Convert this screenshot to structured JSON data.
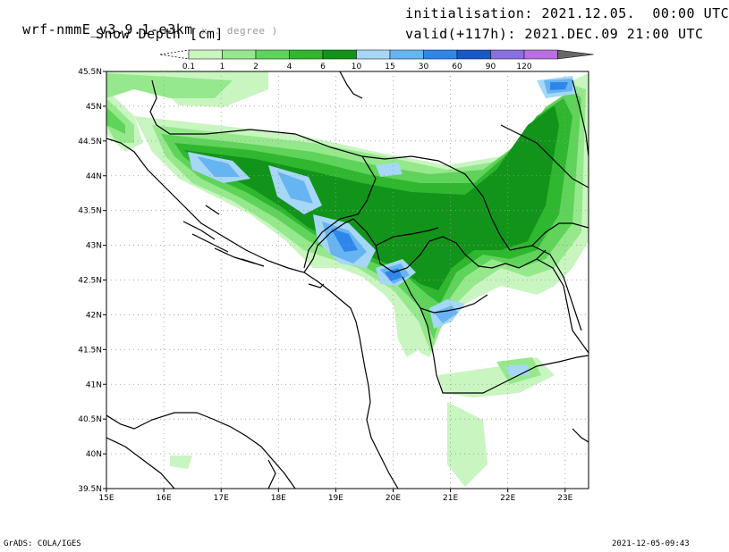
{
  "header": {
    "model": "wrf-nmmE_v3.9.1-e3km",
    "units_hint": "x . degree )",
    "field_title": "Snow Depth [cm]",
    "initialisation": "initialisation: 2021.12.05.  00:00 UTC",
    "valid": "valid(+117h): 2021.DEC.09 21:00 UTC"
  },
  "legend": {
    "levels": [
      "0.1",
      "1",
      "2",
      "4",
      "6",
      "10",
      "15",
      "30",
      "60",
      "90",
      "120"
    ],
    "colors": [
      "#c8f5c0",
      "#96e88c",
      "#5fd35a",
      "#2fb72f",
      "#12941a",
      "#a6d7f7",
      "#66b4f2",
      "#2f86ea",
      "#1859c9",
      "#8a6fe0",
      "#b96fdf",
      "#676767"
    ]
  },
  "axes": {
    "x_ticks": [
      "15E",
      "16E",
      "17E",
      "18E",
      "19E",
      "20E",
      "21E",
      "22E",
      "23E"
    ],
    "y_ticks": [
      "45.5N",
      "45N",
      "44.5N",
      "44N",
      "43.5N",
      "43N",
      "42.5N",
      "42N",
      "41.5N",
      "41N",
      "40.5N",
      "40N",
      "39.5N"
    ]
  },
  "footer": {
    "software": "GrADS: COLA/IGES",
    "timestamp": "2021-12-05-09:43"
  }
}
